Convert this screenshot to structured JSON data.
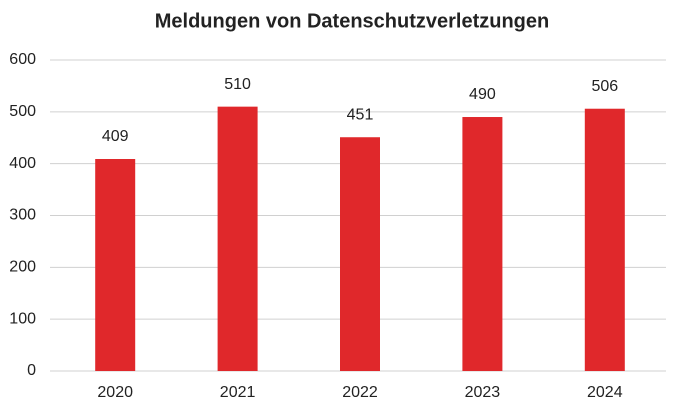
{
  "chart_data": {
    "type": "bar",
    "title": "Meldungen von Datenschutzverletzungen",
    "categories": [
      "2020",
      "2021",
      "2022",
      "2023",
      "2024"
    ],
    "values": [
      409,
      510,
      451,
      490,
      506
    ],
    "color": "#e0282b",
    "ylim": [
      0,
      600
    ],
    "yticks": [
      0,
      100,
      200,
      300,
      400,
      500,
      600
    ],
    "grid": true
  }
}
